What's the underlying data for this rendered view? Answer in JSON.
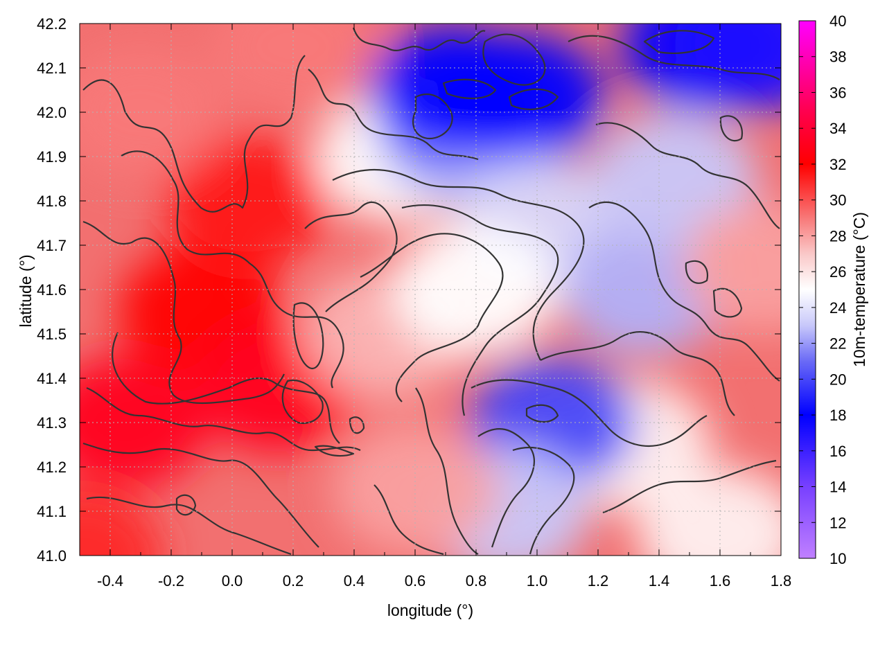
{
  "chart_data": {
    "type": "heatmap",
    "title": "",
    "xlabel": "longitude (°)",
    "ylabel": "latitude (°)",
    "colorbar_label": "10m-temperature (°C)",
    "xlim": [
      -0.5,
      1.8
    ],
    "ylim": [
      41.0,
      42.2
    ],
    "clim": [
      10,
      40
    ],
    "x_ticks": [
      -0.4,
      -0.2,
      0.0,
      0.2,
      0.4,
      0.6,
      0.8,
      1.0,
      1.2,
      1.4,
      1.6,
      1.8
    ],
    "x_tick_labels": [
      "-0.4",
      "-0.2",
      "0.0",
      "0.2",
      "0.4",
      "0.6",
      "0.8",
      "1.0",
      "1.2",
      "1.4",
      "1.6",
      "1.8"
    ],
    "y_ticks": [
      41.0,
      41.1,
      41.2,
      41.3,
      41.4,
      41.5,
      41.6,
      41.7,
      41.8,
      41.9,
      42.0,
      42.1,
      42.2
    ],
    "y_tick_labels": [
      "41.0",
      "41.1",
      "41.2",
      "41.3",
      "41.4",
      "41.5",
      "41.6",
      "41.7",
      "41.8",
      "41.9",
      "42.0",
      "42.1",
      "42.2"
    ],
    "colorbar_ticks": [
      10,
      12,
      14,
      16,
      18,
      20,
      22,
      24,
      26,
      28,
      30,
      32,
      34,
      36,
      38,
      40
    ],
    "colorbar_tick_labels": [
      "10",
      "12",
      "14",
      "16",
      "18",
      "20",
      "22",
      "24",
      "26",
      "28",
      "30",
      "32",
      "34",
      "36",
      "38",
      "40"
    ],
    "colormap": [
      {
        "value": 10,
        "color": "#c080ff"
      },
      {
        "value": 14,
        "color": "#7840ff"
      },
      {
        "value": 18,
        "color": "#0000ff"
      },
      {
        "value": 21,
        "color": "#6a6af6"
      },
      {
        "value": 23,
        "color": "#c8c8fa"
      },
      {
        "value": 25,
        "color": "#ffffff"
      },
      {
        "value": 27,
        "color": "#fac8c8"
      },
      {
        "value": 29,
        "color": "#f87878"
      },
      {
        "value": 32,
        "color": "#ff0000"
      },
      {
        "value": 35,
        "color": "#ff0050"
      },
      {
        "value": 40,
        "color": "#ff00ff"
      }
    ],
    "field_features": [
      {
        "lon": -0.5,
        "lat": 41.0,
        "value": 31
      },
      {
        "lon": -0.35,
        "lat": 41.3,
        "value": 33
      },
      {
        "lon": -0.1,
        "lat": 41.55,
        "value": 32
      },
      {
        "lon": 0.05,
        "lat": 41.8,
        "value": 31.5
      },
      {
        "lon": 0.15,
        "lat": 41.38,
        "value": 33
      },
      {
        "lon": -0.3,
        "lat": 42.0,
        "value": 29
      },
      {
        "lon": 0.2,
        "lat": 42.15,
        "value": 29
      },
      {
        "lon": 0.55,
        "lat": 41.9,
        "value": 25
      },
      {
        "lon": 0.75,
        "lat": 41.95,
        "value": 22
      },
      {
        "lon": 0.72,
        "lat": 42.05,
        "value": 18
      },
      {
        "lon": 0.95,
        "lat": 42.03,
        "value": 18
      },
      {
        "lon": 1.0,
        "lat": 41.75,
        "value": 23.5
      },
      {
        "lon": 1.35,
        "lat": 41.6,
        "value": 22.5
      },
      {
        "lon": 1.45,
        "lat": 41.85,
        "value": 23
      },
      {
        "lon": 1.55,
        "lat": 42.15,
        "value": 18
      },
      {
        "lon": 1.72,
        "lat": 42.15,
        "value": 17
      },
      {
        "lon": 1.75,
        "lat": 41.65,
        "value": 28
      },
      {
        "lon": 1.3,
        "lat": 41.25,
        "value": 25.5
      },
      {
        "lon": 1.05,
        "lat": 41.3,
        "value": 20
      },
      {
        "lon": 0.9,
        "lat": 41.1,
        "value": 23
      },
      {
        "lon": 0.6,
        "lat": 41.15,
        "value": 28
      },
      {
        "lon": 0.5,
        "lat": 41.5,
        "value": 27.5
      },
      {
        "lon": 0.8,
        "lat": 41.6,
        "value": 25
      },
      {
        "lon": 1.6,
        "lat": 41.05,
        "value": 25.5
      }
    ]
  }
}
